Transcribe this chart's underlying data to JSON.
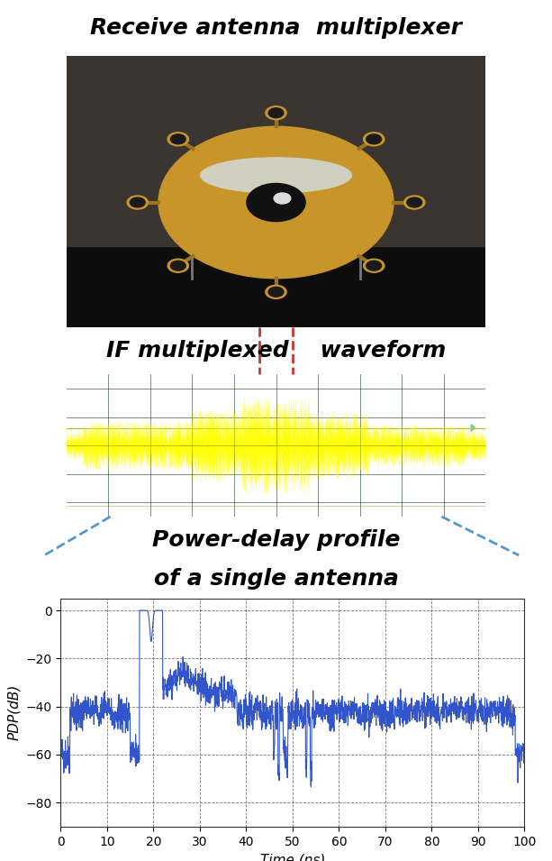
{
  "title_top": "Receive antenna  multiplexer",
  "title_mid": "IF multiplexed    waveform",
  "title_bot1": "Power-delay profile",
  "title_bot2": "of a single antenna",
  "xlabel": "Time (ns)",
  "ylabel": "PDP(dB)",
  "xlim": [
    0,
    100
  ],
  "ylim": [
    -90,
    5
  ],
  "yticks": [
    0,
    -20,
    -40,
    -60,
    -80
  ],
  "xticks": [
    0,
    10,
    20,
    30,
    40,
    50,
    60,
    70,
    80,
    90,
    100
  ],
  "plot_color": "#3355cc",
  "bg_color": "#ffffff",
  "title_fontsize": 18,
  "label_fontsize": 11,
  "tick_fontsize": 10,
  "dashed_line_color": "#cc3333",
  "connector_color": "#5599cc"
}
